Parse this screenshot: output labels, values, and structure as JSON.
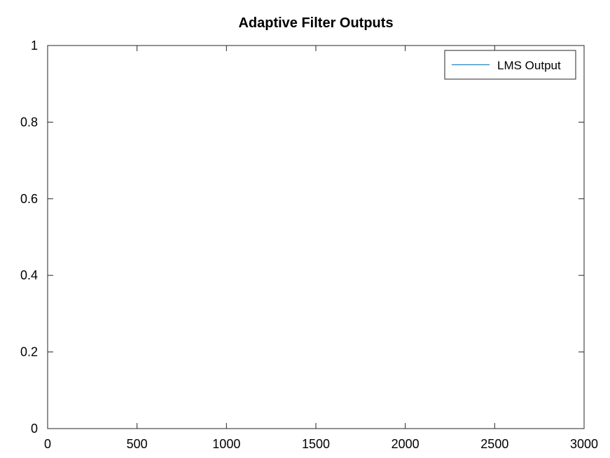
{
  "chart_data": {
    "type": "line",
    "title": "Adaptive Filter Outputs",
    "xlabel": "",
    "ylabel": "",
    "xlim": [
      0,
      3000
    ],
    "ylim": [
      0,
      1
    ],
    "xticks": [
      0,
      500,
      1000,
      1500,
      2000,
      2500,
      3000
    ],
    "yticks": [
      0,
      0.2,
      0.4,
      0.6,
      0.8,
      1
    ],
    "xtick_labels": [
      "0",
      "500",
      "1000",
      "1500",
      "2000",
      "2500",
      "3000"
    ],
    "ytick_labels": [
      "0",
      "0.2",
      "0.4",
      "0.6",
      "0.8",
      "1"
    ],
    "grid": false,
    "legend_position": "top-right",
    "series": [
      {
        "name": "LMS Output",
        "color": "#0072bd",
        "x": [],
        "y": []
      }
    ]
  }
}
